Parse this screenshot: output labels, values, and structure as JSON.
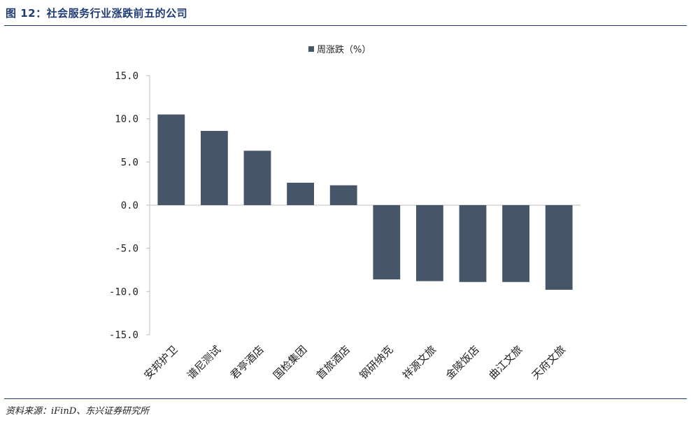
{
  "figure_title": "图 12：社会服务行业涨跌前五的公司",
  "source": "资料来源：iFinD、东兴证券研究所",
  "colors": {
    "bar": "#475569",
    "title": "#1f3b73",
    "axis": "#bfbfbf"
  },
  "chart_data": {
    "type": "bar",
    "categories": [
      "安邦护卫",
      "谱尼测试",
      "君亭酒店",
      "国检集团",
      "首旅酒店",
      "钢研纳克",
      "祥源文旅",
      "金陵饭店",
      "曲江文旅",
      "天府文旅"
    ],
    "series": [
      {
        "name": "周涨跌（%）",
        "values": [
          10.5,
          8.6,
          6.3,
          2.6,
          2.3,
          -8.6,
          -8.8,
          -8.9,
          -8.9,
          -9.8
        ]
      }
    ],
    "yticks": [
      "15.0",
      "10.0",
      "5.0",
      "0.0",
      "-5.0",
      "-10.0",
      "-15.0"
    ],
    "ylim": [
      -15,
      15
    ],
    "legend_position": "top-center",
    "grid": false
  }
}
